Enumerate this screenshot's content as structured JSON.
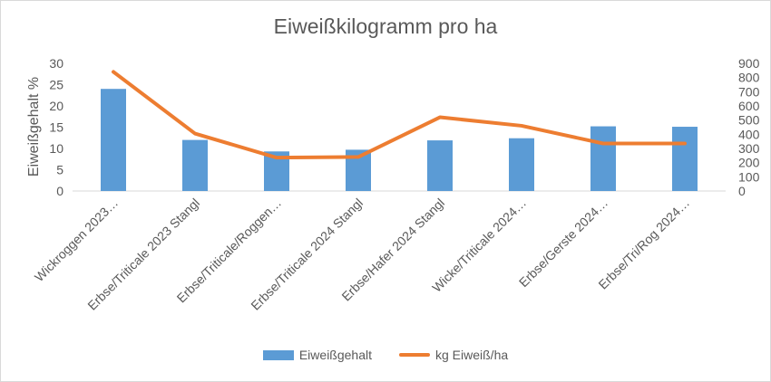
{
  "chart_data": {
    "type": "bar",
    "title": "Eiweißkilogramm pro ha",
    "ylabel": "Eiweißgehalt %",
    "y2label": "",
    "ylim": [
      0,
      30
    ],
    "y2lim": [
      0,
      900
    ],
    "yticks": [
      "0",
      "5",
      "10",
      "15",
      "20",
      "25",
      "30"
    ],
    "y2ticks": [
      "0",
      "100",
      "200",
      "300",
      "400",
      "500",
      "600",
      "700",
      "800",
      "900"
    ],
    "categories": [
      "Wickroggen 2023…",
      "Erbse/Triticale 2023 Stangl",
      "Erbse/Triticale/Roggen…",
      "Erbse/Triticale 2024 Stangl",
      "Erbse/Hafer 2024 Stangl",
      "Wicke/Triticale 2024…",
      "Erbse/Gerste 2024…",
      "Erbse/Tri/Rog 2024…"
    ],
    "series": [
      {
        "name": "Eiweißgehalt",
        "type": "bar",
        "axis": "left",
        "color": "#5b9bd5",
        "values": [
          24,
          12,
          9.3,
          9.7,
          11.9,
          12.4,
          15.2,
          15.1
        ]
      },
      {
        "name": "kg Eiweiß/ha",
        "type": "line",
        "axis": "right",
        "color": "#ed7d31",
        "values": [
          840,
          405,
          235,
          240,
          520,
          460,
          335,
          335
        ]
      }
    ],
    "grid": false,
    "legend": "bottom"
  }
}
